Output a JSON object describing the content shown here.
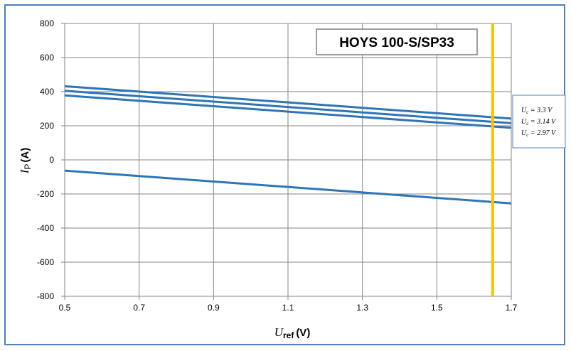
{
  "chart_data": {
    "type": "line",
    "title": "HOYS 100-S/SP33",
    "xlabel": {
      "main": "U",
      "sub": "ref",
      "unit": "(V)"
    },
    "ylabel": {
      "main": "I",
      "sub": "P",
      "unit": "(A)"
    },
    "xlim": [
      0.5,
      1.7
    ],
    "ylim": [
      -800,
      800
    ],
    "xticks": [
      "0.5",
      "0.7",
      "0.9",
      "1.1",
      "1.3",
      "1.5",
      "1.7"
    ],
    "yticks": [
      "800",
      "600",
      "400",
      "200",
      "0",
      "-200",
      "-400",
      "-600",
      "-800"
    ],
    "grid": true,
    "series": [
      {
        "name": "Uc = 3.3 V",
        "legend": {
          "main": "U",
          "sub": "c",
          "rest": " = 3.3 V"
        },
        "color": "#2e75b6",
        "x": [
          0.5,
          1.7
        ],
        "y": [
          432,
          242
        ]
      },
      {
        "name": "Uc = 3.14 V",
        "legend": {
          "main": "U",
          "sub": "c",
          "rest": " = 3.14 V"
        },
        "color": "#2e75b6",
        "x": [
          0.5,
          1.7
        ],
        "y": [
          405,
          215
        ]
      },
      {
        "name": "Uc = 2.97 V",
        "legend": {
          "main": "U",
          "sub": "c",
          "rest": " = 2.97 V"
        },
        "color": "#2e75b6",
        "x": [
          0.5,
          1.7
        ],
        "y": [
          378,
          188
        ]
      },
      {
        "name": "",
        "color": "#2e75b6",
        "x": [
          0.5,
          1.7
        ],
        "y": [
          -63,
          -255
        ]
      }
    ],
    "reference_line": {
      "x": 1.65,
      "color": "#ffc000"
    },
    "legend_position": "right"
  }
}
